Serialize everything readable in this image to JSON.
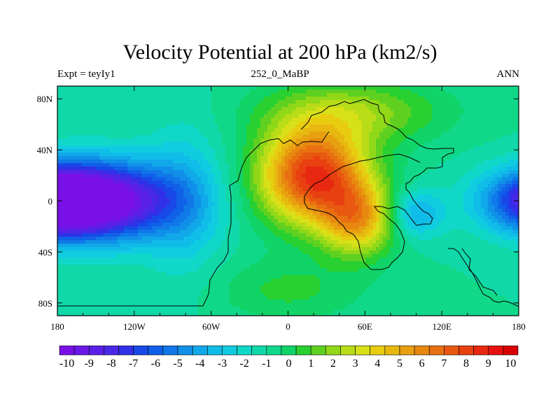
{
  "chart_data": {
    "type": "heatmap",
    "title": "Velocity Potential at 200 hPa (km2/s)",
    "left_label": "Expt = teyIy1",
    "center_label": "252_0_MaBP",
    "right_label": "ANN",
    "x_ticks": [
      "180",
      "120W",
      "60W",
      "0",
      "60E",
      "120E",
      "180"
    ],
    "x_values": [
      -180,
      -120,
      -60,
      0,
      60,
      120,
      180
    ],
    "y_ticks": [
      "80N",
      "40N",
      "0",
      "40S",
      "80S"
    ],
    "y_values": [
      80,
      40,
      0,
      -40,
      -80
    ],
    "xlim": [
      -180,
      180
    ],
    "ylim": [
      -90,
      90
    ],
    "colorbar_labels": [
      "-10",
      "-9",
      "-8",
      "-7",
      "-6",
      "-5",
      "-4",
      "-3",
      "-2",
      "-1",
      "0",
      "1",
      "2",
      "3",
      "4",
      "5",
      "6",
      "7",
      "8",
      "9",
      "10"
    ],
    "colorbar_colors": [
      "#7a10e8",
      "#6a18e8",
      "#5a20e8",
      "#4a28e8",
      "#3030e8",
      "#1848e8",
      "#1060e8",
      "#1078e8",
      "#1090e8",
      "#10a8e8",
      "#10bce8",
      "#10cce0",
      "#10d8c8",
      "#10d8a8",
      "#10d888",
      "#10d468",
      "#28d030",
      "#60d020",
      "#90d818",
      "#b8dc18",
      "#d8e018",
      "#e8cc10",
      "#e8b810",
      "#e8a010",
      "#e88810",
      "#e87010",
      "#e85810",
      "#e84010",
      "#e82810",
      "#e81010",
      "#d80000"
    ]
  }
}
